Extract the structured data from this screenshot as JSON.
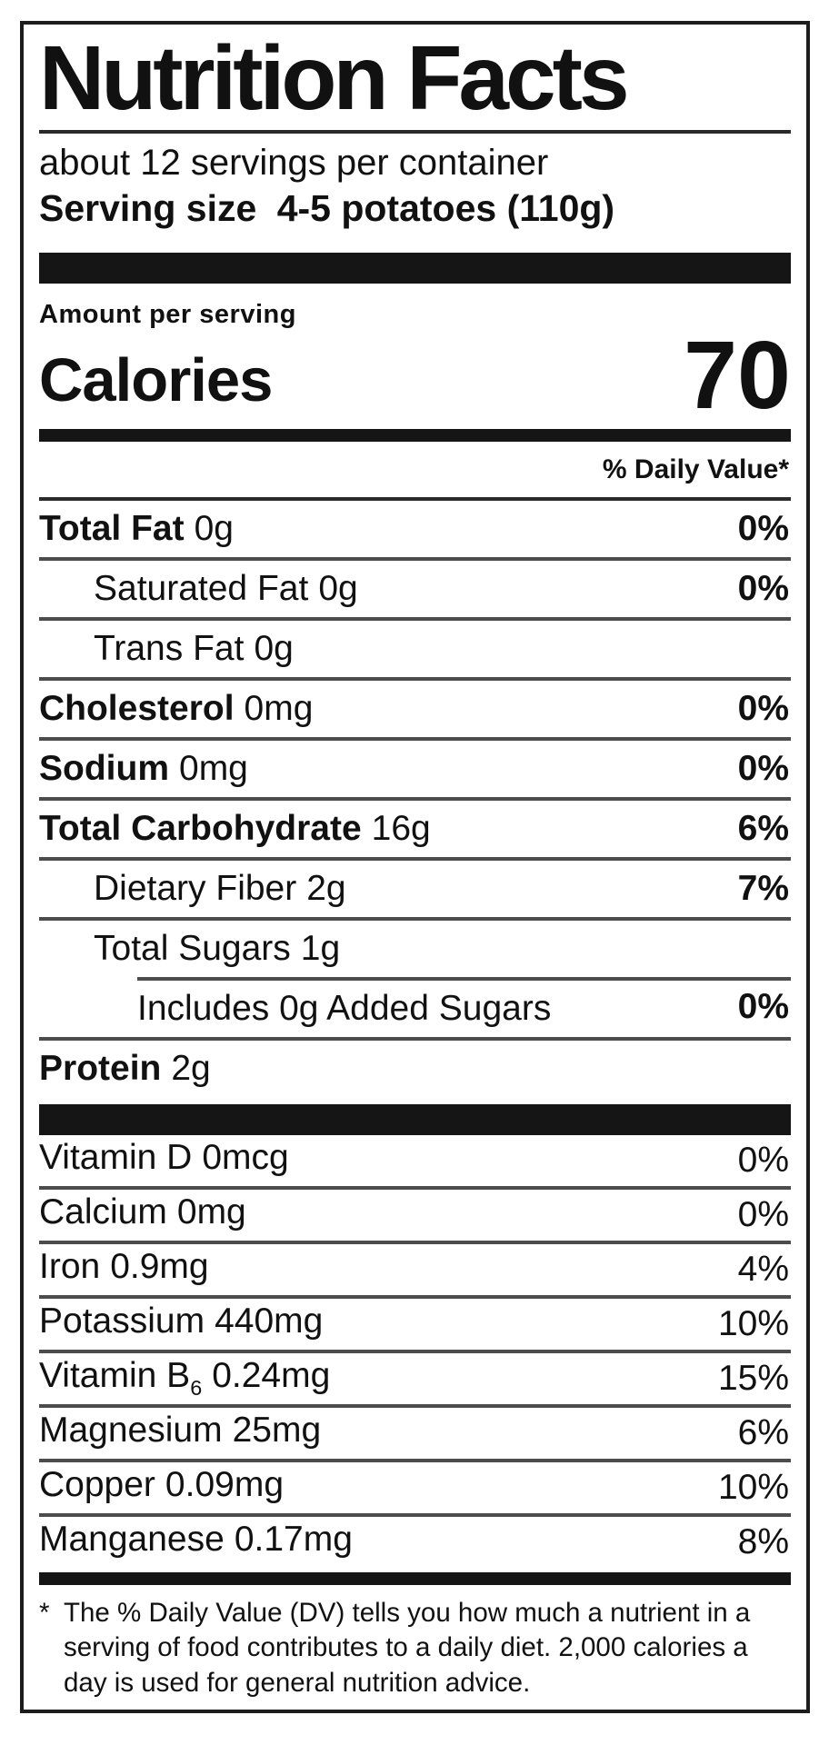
{
  "label": {
    "title": "Nutrition Facts",
    "servings_per_container": "about 12 servings per container",
    "serving_size": {
      "label": "Serving size",
      "value": "4-5 potatoes (110g)"
    },
    "amount_per_serving": "Amount per serving",
    "calories": {
      "label": "Calories",
      "value": "70"
    },
    "daily_value_header": "% Daily Value*",
    "nutrients": [
      {
        "name": "Total Fat",
        "amount": "0g",
        "dv": "0%"
      },
      {
        "name": "Saturated Fat",
        "amount": "0g",
        "dv": "0%"
      },
      {
        "name": "Trans Fat",
        "amount": "0g",
        "dv": ""
      },
      {
        "name": "Cholesterol",
        "amount": "0mg",
        "dv": "0%"
      },
      {
        "name": "Sodium",
        "amount": "0mg",
        "dv": "0%"
      },
      {
        "name": "Total Carbohydrate",
        "amount": "16g",
        "dv": "6%"
      },
      {
        "name": "Dietary Fiber",
        "amount": "2g",
        "dv": "7%"
      },
      {
        "name": "Total Sugars",
        "amount": "1g",
        "dv": ""
      },
      {
        "name": "Includes 0g Added Sugars",
        "amount": "",
        "dv": "0%"
      },
      {
        "name": "Protein",
        "amount": "2g",
        "dv": ""
      }
    ],
    "micronutrients": [
      {
        "name": "Vitamin D",
        "amount": "0mcg",
        "dv": "0%"
      },
      {
        "name": "Calcium",
        "amount": "0mg",
        "dv": "0%"
      },
      {
        "name": "Iron",
        "amount": "0.9mg",
        "dv": "4%"
      },
      {
        "name": "Potassium",
        "amount": "440mg",
        "dv": "10%"
      },
      {
        "name": "Vitamin B",
        "sub": "6",
        "amount": "0.24mg",
        "dv": "15%"
      },
      {
        "name": "Magnesium",
        "amount": "25mg",
        "dv": "6%"
      },
      {
        "name": "Copper",
        "amount": "0.09mg",
        "dv": "10%"
      },
      {
        "name": "Manganese",
        "amount": "0.17mg",
        "dv": "8%"
      }
    ],
    "footnote": {
      "marker": "*",
      "text": "The % Daily Value (DV) tells you how much a nutrient in a serving of food contributes to a daily diet. 2,000 calories a day is used for general nutrition advice."
    }
  }
}
